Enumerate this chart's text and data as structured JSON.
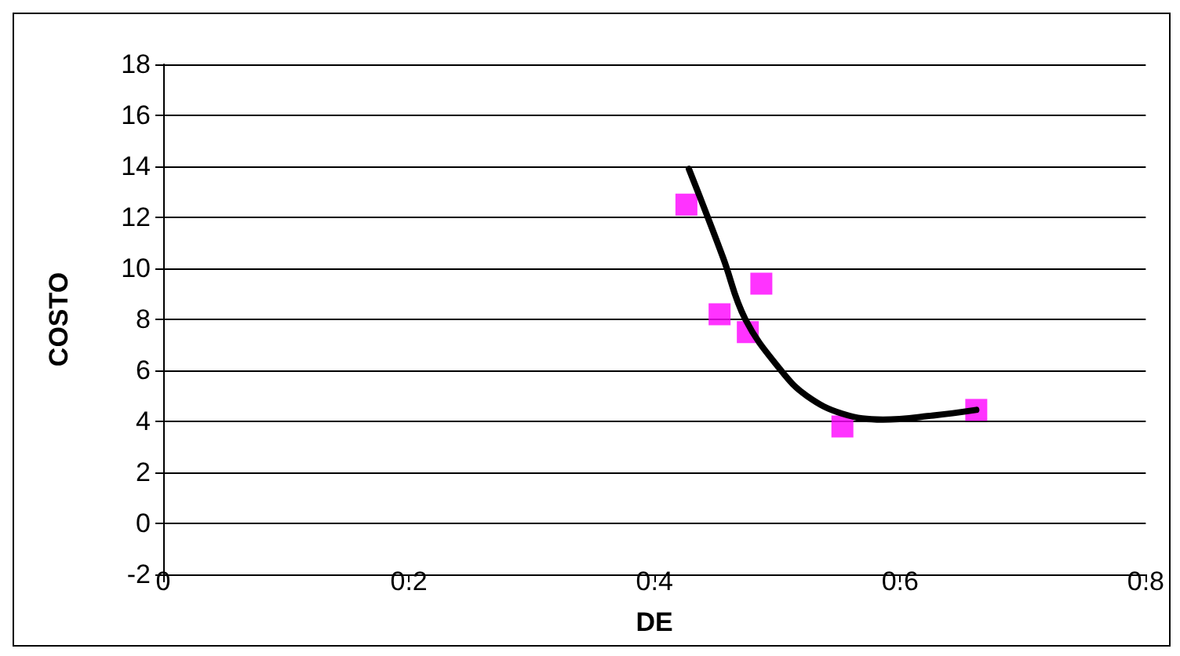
{
  "chart_data": {
    "type": "scatter",
    "xlabel": "DE",
    "ylabel": "COSTO",
    "xlim": [
      0,
      0.8
    ],
    "xticks": [
      0,
      0.2,
      0.4,
      0.6,
      0.8
    ],
    "ylim": [
      -2,
      18
    ],
    "yticks": [
      -2,
      0,
      2,
      4,
      6,
      8,
      10,
      12,
      14,
      16,
      18
    ],
    "grid": "y",
    "marker": "square",
    "series": [
      {
        "color": "#ff00ff",
        "x": [
          0.426,
          0.453,
          0.476,
          0.487,
          0.553,
          0.662
        ],
        "values": [
          12.5,
          8.2,
          7.5,
          9.4,
          3.8,
          4.45
        ]
      },
      {
        "type": "line",
        "color": "#000000",
        "marker": "none",
        "x": [
          0.428,
          0.441,
          0.456,
          0.474,
          0.503,
          0.524,
          0.553,
          0.586,
          0.627,
          0.662
        ],
        "values": [
          13.9,
          12.3,
          10.4,
          8.0,
          6.0,
          5.0,
          4.3,
          4.07,
          4.23,
          4.45
        ]
      }
    ]
  }
}
